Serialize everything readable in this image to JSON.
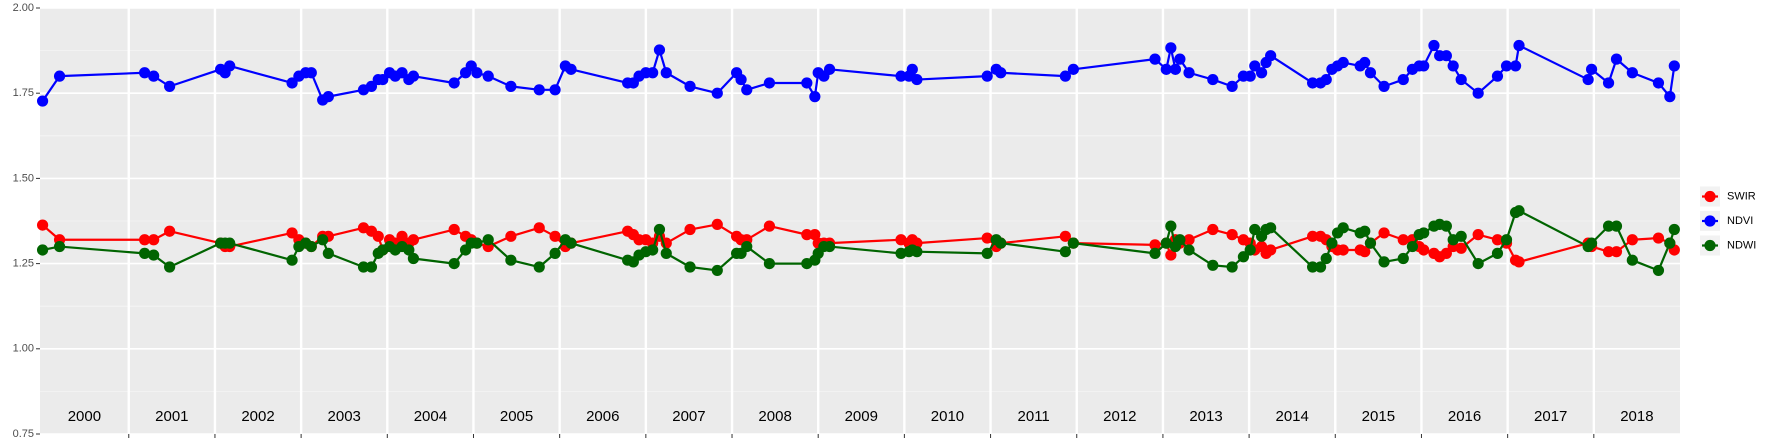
{
  "chart_data": {
    "type": "line",
    "x": [
      2000.0,
      2000.197,
      2001.184,
      2001.289,
      2001.474,
      2002.066,
      2002.118,
      2002.171,
      2002.895,
      2002.974,
      2003.053,
      2003.118,
      2003.25,
      2003.316,
      2003.724,
      2003.816,
      2003.895,
      2003.947,
      2004.026,
      2004.092,
      2004.171,
      2004.25,
      2004.303,
      2004.776,
      2004.908,
      2004.974,
      2005.039,
      2005.171,
      2005.434,
      2005.763,
      2005.947,
      2006.066,
      2006.132,
      2006.789,
      2006.855,
      2006.921,
      2007.0,
      2007.079,
      2007.158,
      2007.237,
      2007.513,
      2007.829,
      2008.053,
      2008.105,
      2008.171,
      2008.434,
      2008.868,
      2008.961,
      2009.0,
      2009.066,
      2009.132,
      2009.961,
      2010.053,
      2010.092,
      2010.145,
      2010.961,
      2011.066,
      2011.118,
      2011.868,
      2011.961,
      2012.908,
      2013.039,
      2013.092,
      2013.145,
      2013.197,
      2013.303,
      2013.579,
      2013.803,
      2013.934,
      2014.013,
      2014.066,
      2014.145,
      2014.197,
      2014.25,
      2014.737,
      2014.829,
      2014.895,
      2014.961,
      2015.026,
      2015.092,
      2015.289,
      2015.342,
      2015.408,
      2015.566,
      2015.789,
      2015.895,
      2015.974,
      2016.026,
      2016.145,
      2016.211,
      2016.289,
      2016.368,
      2016.461,
      2016.658,
      2016.882,
      2016.987,
      2017.092,
      2017.132,
      2017.934,
      2017.974,
      2018.171,
      2018.263,
      2018.447,
      2018.75,
      2018.882,
      2018.934
    ],
    "series": [
      {
        "name": "SWIR",
        "color": "#ff0000",
        "values": [
          1.363,
          1.32,
          1.32,
          1.32,
          1.345,
          1.31,
          1.3,
          1.3,
          1.34,
          1.32,
          1.31,
          1.3,
          1.33,
          1.33,
          1.355,
          1.345,
          1.33,
          1.29,
          1.32,
          1.31,
          1.33,
          1.31,
          1.32,
          1.35,
          1.33,
          1.32,
          1.31,
          1.3,
          1.33,
          1.355,
          1.33,
          1.3,
          1.31,
          1.345,
          1.335,
          1.32,
          1.32,
          1.31,
          1.33,
          1.31,
          1.35,
          1.365,
          1.33,
          1.32,
          1.32,
          1.36,
          1.335,
          1.335,
          1.31,
          1.31,
          1.31,
          1.32,
          1.31,
          1.32,
          1.31,
          1.325,
          1.3,
          1.31,
          1.33,
          1.31,
          1.305,
          1.31,
          1.275,
          1.32,
          1.31,
          1.32,
          1.35,
          1.335,
          1.32,
          1.31,
          1.29,
          1.3,
          1.28,
          1.29,
          1.33,
          1.33,
          1.32,
          1.3,
          1.29,
          1.29,
          1.29,
          1.285,
          1.31,
          1.34,
          1.32,
          1.32,
          1.3,
          1.29,
          1.28,
          1.27,
          1.28,
          1.3,
          1.295,
          1.335,
          1.32,
          1.31,
          1.26,
          1.255,
          1.31,
          1.3,
          1.285,
          1.285,
          1.32,
          1.325,
          1.31,
          1.29
        ]
      },
      {
        "name": "NDVI",
        "color": "#0000ff",
        "values": [
          1.727,
          1.8,
          1.81,
          1.8,
          1.77,
          1.82,
          1.81,
          1.83,
          1.78,
          1.8,
          1.81,
          1.81,
          1.73,
          1.74,
          1.76,
          1.77,
          1.79,
          1.79,
          1.81,
          1.8,
          1.81,
          1.79,
          1.8,
          1.78,
          1.81,
          1.83,
          1.81,
          1.8,
          1.77,
          1.76,
          1.76,
          1.83,
          1.82,
          1.78,
          1.78,
          1.8,
          1.81,
          1.81,
          1.877,
          1.81,
          1.77,
          1.75,
          1.81,
          1.79,
          1.76,
          1.78,
          1.78,
          1.74,
          1.81,
          1.8,
          1.82,
          1.8,
          1.8,
          1.82,
          1.79,
          1.8,
          1.82,
          1.81,
          1.8,
          1.82,
          1.85,
          1.82,
          1.883,
          1.82,
          1.85,
          1.81,
          1.79,
          1.77,
          1.8,
          1.8,
          1.83,
          1.81,
          1.84,
          1.86,
          1.78,
          1.78,
          1.79,
          1.82,
          1.83,
          1.84,
          1.83,
          1.84,
          1.81,
          1.77,
          1.79,
          1.82,
          1.83,
          1.83,
          1.89,
          1.86,
          1.86,
          1.83,
          1.79,
          1.75,
          1.8,
          1.83,
          1.83,
          1.89,
          1.79,
          1.82,
          1.78,
          1.85,
          1.81,
          1.78,
          1.74,
          1.83
        ]
      },
      {
        "name": "NDWI",
        "color": "#006400",
        "values": [
          1.29,
          1.3,
          1.28,
          1.275,
          1.24,
          1.31,
          1.31,
          1.31,
          1.26,
          1.3,
          1.31,
          1.3,
          1.32,
          1.28,
          1.24,
          1.24,
          1.28,
          1.29,
          1.3,
          1.29,
          1.3,
          1.29,
          1.265,
          1.25,
          1.29,
          1.31,
          1.31,
          1.32,
          1.26,
          1.24,
          1.28,
          1.32,
          1.31,
          1.26,
          1.255,
          1.275,
          1.285,
          1.29,
          1.35,
          1.28,
          1.24,
          1.23,
          1.28,
          1.28,
          1.3,
          1.25,
          1.25,
          1.26,
          1.28,
          1.3,
          1.3,
          1.28,
          1.285,
          1.29,
          1.285,
          1.28,
          1.32,
          1.31,
          1.285,
          1.31,
          1.28,
          1.31,
          1.36,
          1.3,
          1.32,
          1.29,
          1.245,
          1.24,
          1.27,
          1.29,
          1.35,
          1.33,
          1.35,
          1.355,
          1.24,
          1.24,
          1.265,
          1.31,
          1.34,
          1.355,
          1.34,
          1.345,
          1.31,
          1.255,
          1.265,
          1.3,
          1.335,
          1.34,
          1.36,
          1.365,
          1.36,
          1.32,
          1.33,
          1.25,
          1.28,
          1.32,
          1.4,
          1.405,
          1.3,
          1.31,
          1.36,
          1.36,
          1.26,
          1.23,
          1.31,
          1.35
        ]
      }
    ],
    "xlim": [
      1999.97,
      2019.0
    ],
    "xticks": [
      2001,
      2002,
      2003,
      2004,
      2005,
      2006,
      2007,
      2008,
      2009,
      2010,
      2011,
      2012,
      2013,
      2014,
      2015,
      2016,
      2017,
      2018
    ],
    "year_labels": [
      "2000",
      "2001",
      "2002",
      "2003",
      "2004",
      "2005",
      "2006",
      "2007",
      "2008",
      "2009",
      "2010",
      "2011",
      "2012",
      "2013",
      "2014",
      "2015",
      "2016",
      "2017",
      "2018"
    ],
    "ylim": [
      0.75,
      2.0
    ],
    "yticks": [
      0.75,
      {
        "value": 1.0,
        "label": "1.00"
      },
      1.25,
      {
        "value": 1.5,
        "label": "1.50"
      },
      1.75,
      {
        "value": 2.0,
        "label": "2.00"
      }
    ],
    "grid": true,
    "legend": "right"
  }
}
